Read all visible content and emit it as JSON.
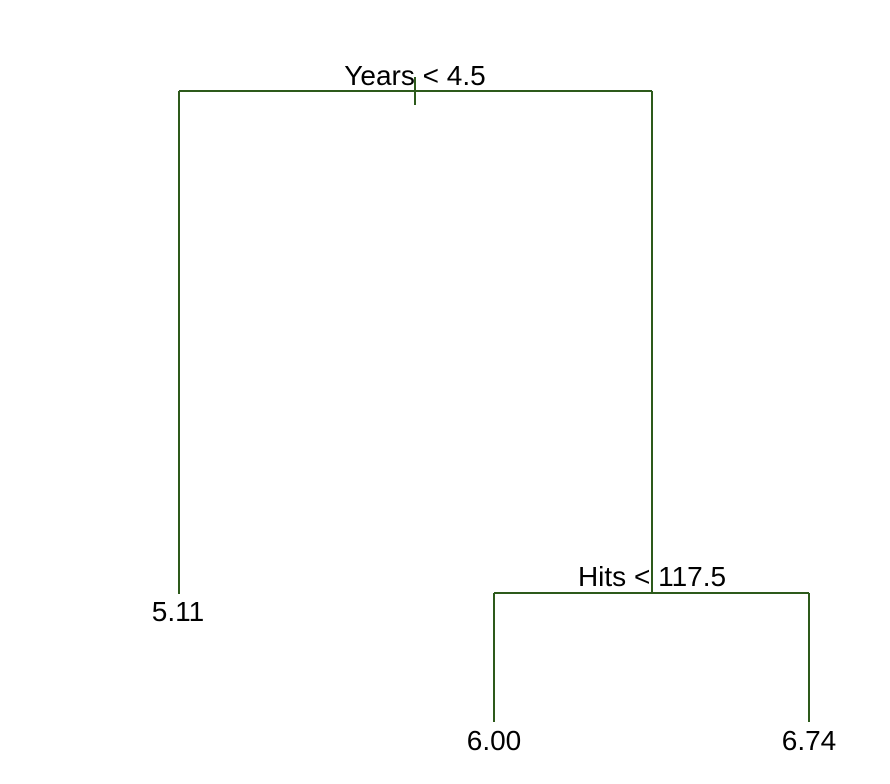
{
  "tree": {
    "root": {
      "split_label": "Years < 4.5",
      "left": {
        "leaf_value": "5.11"
      },
      "right": {
        "split_label": "Hits < 117.5",
        "left": {
          "leaf_value": "6.00"
        },
        "right": {
          "leaf_value": "6.74"
        }
      }
    },
    "branch_color": "#2d5a1b",
    "text_color": "#000000"
  }
}
